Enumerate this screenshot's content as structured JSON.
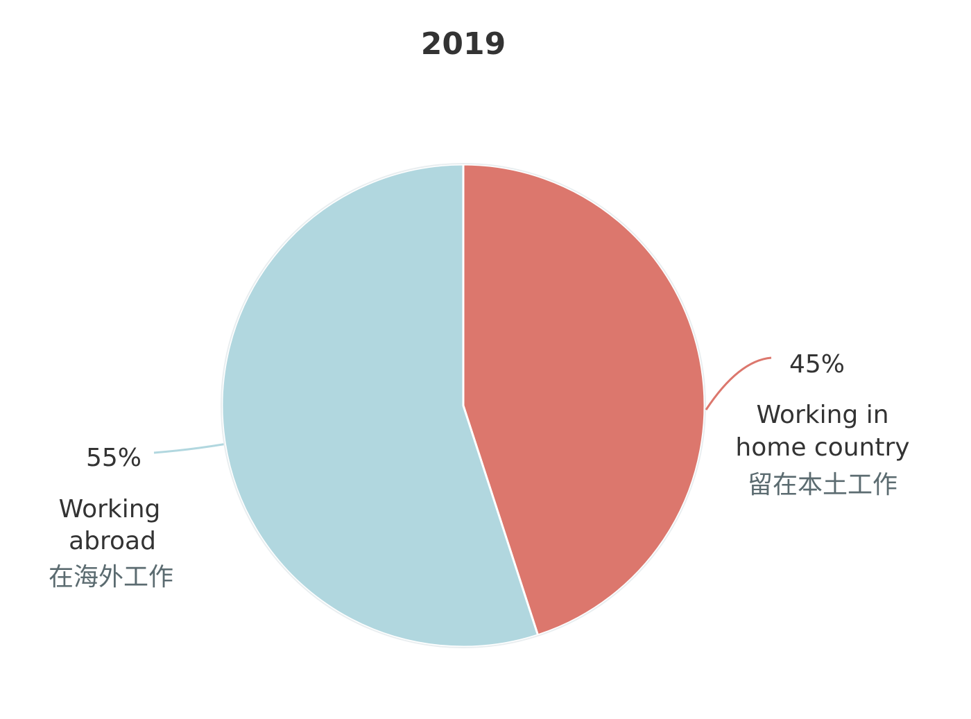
{
  "chart_data": {
    "type": "pie",
    "title": "2019",
    "slices": [
      {
        "value": 45,
        "value_label": "45%",
        "label_lines": [
          "Working in",
          "home country"
        ],
        "label_cn": "留在本土工作",
        "color": "#dc776d"
      },
      {
        "value": 55,
        "value_label": "55%",
        "label_lines": [
          "Working",
          "abroad"
        ],
        "label_cn": "在海外工作",
        "color": "#b1d7df"
      }
    ],
    "start_direction": "top",
    "direction": "clockwise",
    "leader_color_matches_slice": true
  }
}
